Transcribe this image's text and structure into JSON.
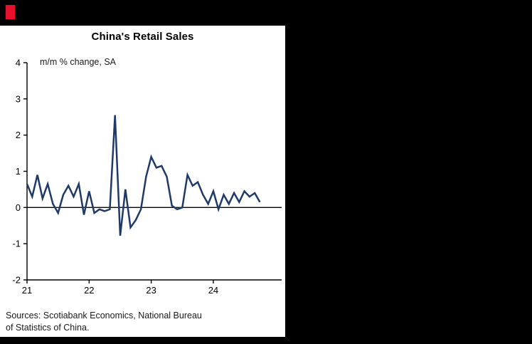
{
  "window": {
    "background_color": "#000000",
    "logo_color": "#e8112d"
  },
  "chart": {
    "title": "China's Retail Sales",
    "subtitle": "m/m % change, SA",
    "source_note": "Sources: Scotiabank Economics, National Bureau\nof Statistics of China.",
    "line_color": "#1f3a68",
    "axis_color": "#000000",
    "tick_label_color": "#000000"
  },
  "chart_data": {
    "type": "line",
    "title": "China's Retail Sales",
    "ylabel": "m/m % change, SA",
    "frequency": "monthly",
    "x_start_label": "2021-01",
    "x_start": 21,
    "x_step": 0.0833333,
    "xlim": [
      21,
      25.1
    ],
    "ylim": [
      -2,
      4
    ],
    "y_ticks": [
      4,
      3,
      2,
      1,
      0,
      -1,
      -2
    ],
    "x_ticks": [
      21,
      22,
      23,
      24
    ],
    "grid": false,
    "legend": false,
    "series": [
      {
        "name": "China retail sales, m/m % change, SA",
        "values": [
          0.65,
          0.3,
          0.9,
          0.25,
          0.65,
          0.1,
          -0.15,
          0.35,
          0.6,
          0.3,
          0.65,
          -0.2,
          0.45,
          -0.15,
          -0.05,
          -0.1,
          -0.05,
          2.55,
          -0.78,
          0.5,
          -0.55,
          -0.35,
          -0.05,
          0.85,
          1.4,
          1.1,
          1.15,
          0.85,
          0.05,
          -0.05,
          0.0,
          0.9,
          0.6,
          0.7,
          0.35,
          0.1,
          0.45,
          -0.05,
          0.35,
          0.1,
          0.4,
          0.15,
          0.45,
          0.3,
          0.4,
          0.15
        ]
      }
    ]
  }
}
